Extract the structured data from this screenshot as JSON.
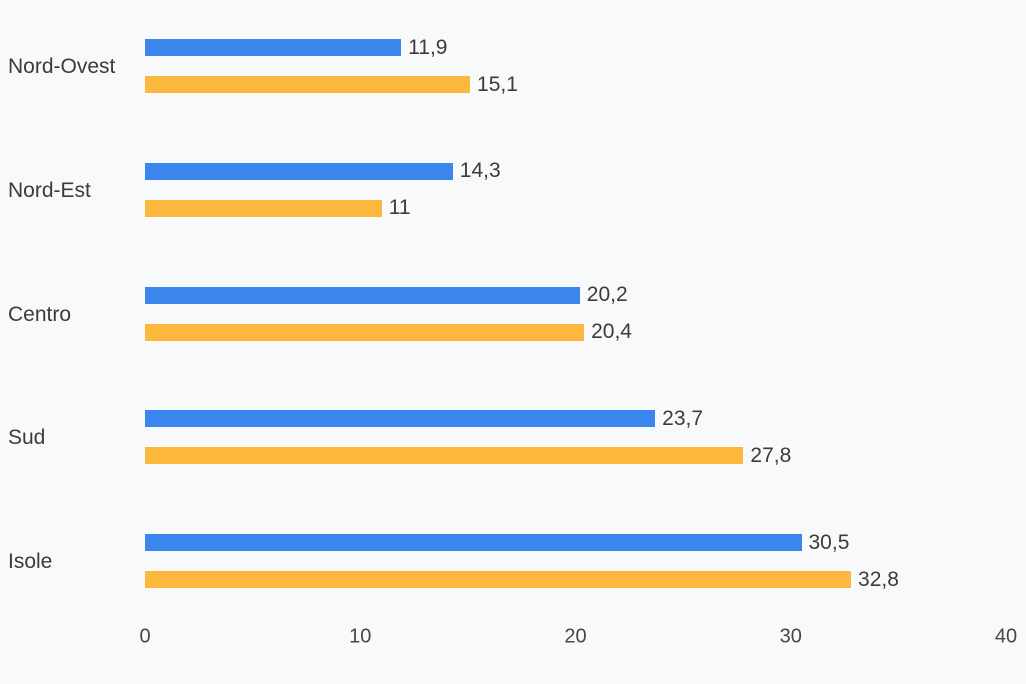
{
  "background_color": "#f8f9fa",
  "text_color": "#3b3b3b",
  "axis_text_color": "#474747",
  "chart_data": {
    "type": "bar",
    "orientation": "horizontal",
    "title": "",
    "xlabel": "",
    "ylabel": "",
    "categories": [
      "Nord-Ovest",
      "Nord-Est",
      "Centro",
      "Sud",
      "Isole"
    ],
    "series": [
      {
        "name": "",
        "color": "#3a86ec",
        "values": [
          11.9,
          14.3,
          20.2,
          23.7,
          30.5
        ],
        "labels": [
          "11,9",
          "14,3",
          "20,2",
          "23,7",
          "30,5"
        ]
      },
      {
        "name": "",
        "color": "#fcb83d",
        "values": [
          15.1,
          11,
          20.4,
          27.8,
          32.8
        ],
        "labels": [
          "15,1",
          "11",
          "20,4",
          "27,8",
          "32,8"
        ]
      }
    ],
    "xlim": [
      0,
      40
    ],
    "x_ticks": [
      0,
      10,
      20,
      30,
      40
    ],
    "x_tick_labels": [
      "0",
      "10",
      "20",
      "30",
      "40"
    ],
    "grid": false,
    "legend": false,
    "value_labels": true,
    "decimal_separator": ","
  }
}
